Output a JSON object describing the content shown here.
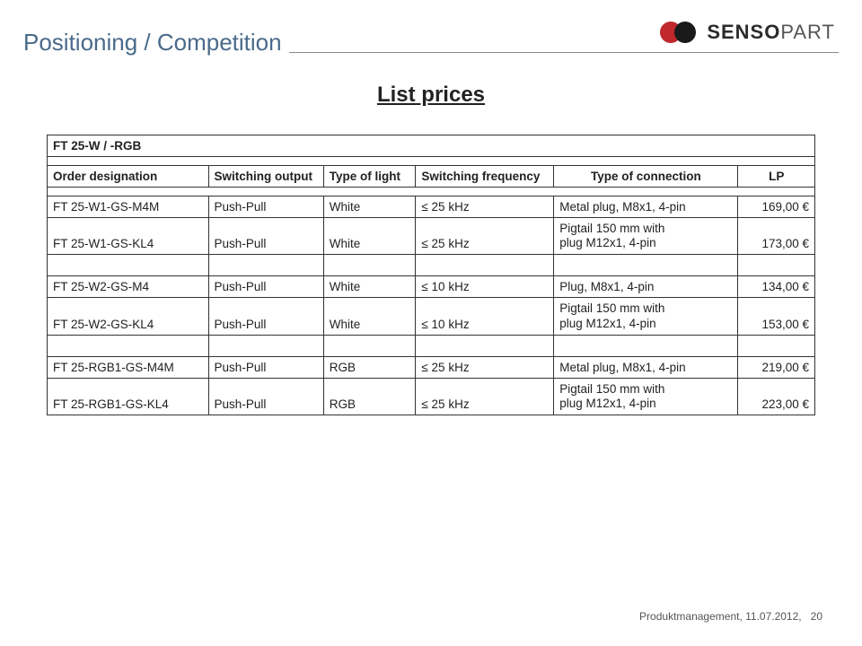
{
  "header": {
    "page_title": "Positioning / Competition",
    "subtitle": "List prices",
    "logo_text_bold": "SENSO",
    "logo_text_light": "PART",
    "logo_color_left": "#c0282d",
    "logo_color_right": "#1a1a1a"
  },
  "table": {
    "group_title": "FT 25-W / -RGB",
    "columns": {
      "c0": "Order designation",
      "c1": "Switching output",
      "c2": "Type of light",
      "c3": "Switching frequency",
      "c4": "Type of connection",
      "c5": "LP"
    },
    "rows": [
      {
        "order": "FT 25-W1-GS-M4M",
        "sw": "Push-Pull",
        "light": "White",
        "freq_label": "≤ 25 kHz",
        "conn": "Metal plug, M8x1, 4-pin",
        "lp": "169,00 €"
      },
      {
        "order": "FT 25-W1-GS-KL4",
        "sw": "Push-Pull",
        "light": "White",
        "freq_label": "≤ 25 kHz",
        "conn": "Pigtail 150 mm with\nplug M12x1, 4-pin",
        "lp": "173,00 €"
      },
      {
        "order": "FT 25-W2-GS-M4",
        "sw": "Push-Pull",
        "light": "White",
        "freq_label": "≤ 10 kHz",
        "conn": "Plug, M8x1, 4-pin",
        "lp": "134,00 €"
      },
      {
        "order": "FT 25-W2-GS-KL4",
        "sw": "Push-Pull",
        "light": "White",
        "freq_label": "≤ 10 kHz",
        "conn": "Pigtail 150 mm with\nplug M12x1, 4-pin",
        "lp": "153,00 €"
      },
      {
        "order": "FT 25-RGB1-GS-M4M",
        "sw": "Push-Pull",
        "light": "RGB",
        "freq_label": "≤ 25 kHz",
        "conn": "Metal plug, M8x1, 4-pin",
        "lp": "219,00 €"
      },
      {
        "order": "FT 25-RGB1-GS-KL4",
        "sw": "Push-Pull",
        "light": "RGB",
        "freq_label": "≤ 25 kHz",
        "conn": "Pigtail 150 mm with\nplug M12x1, 4-pin",
        "lp": "223,00 €"
      }
    ]
  },
  "footer": {
    "text": "Produktmanagement, 11.07.2012,",
    "page_num": "20"
  },
  "colors": {
    "title_color": "#4a6a8a",
    "rule_color": "#888888",
    "text_color": "#222222",
    "footer_color": "#555555",
    "border_color": "#333333",
    "background": "#ffffff"
  }
}
